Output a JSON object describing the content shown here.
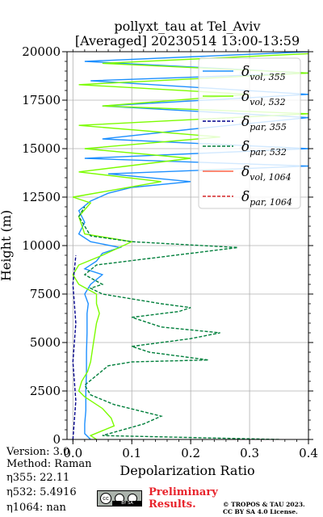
{
  "chart_data": {
    "type": "line",
    "title": "pollyxt_tau at Tel_Aviv",
    "subtitle": "[Averaged] 20230514 13:00-13:59",
    "xlabel": "Depolarization Ratio",
    "ylabel": "Height (m)",
    "xlim": [
      -0.01,
      0.4
    ],
    "ylim": [
      0,
      20000
    ],
    "x_ticks": [
      "0.0",
      "0.1",
      "0.2",
      "0.3",
      "0.4"
    ],
    "y_ticks": [
      "0",
      "2500",
      "5000",
      "7500",
      "10000",
      "12500",
      "15000",
      "17500",
      "20000"
    ],
    "grid": true,
    "legend_position": "upper right",
    "legend_labels": [
      {
        "base": "δ",
        "sub": "vol, 355"
      },
      {
        "base": "δ",
        "sub": "vol, 532"
      },
      {
        "base": "δ",
        "sub": "par, 355"
      },
      {
        "base": "δ",
        "sub": "par, 532"
      },
      {
        "base": "δ",
        "sub": "vol, 1064"
      },
      {
        "base": "δ",
        "sub": "par, 1064"
      }
    ],
    "series": [
      {
        "name": "δvol,355",
        "color": "#1e90ff",
        "style": "solid",
        "points": [
          [
            0.03,
            0
          ],
          [
            0.02,
            300
          ],
          [
            0.02,
            800
          ],
          [
            0.022,
            1500
          ],
          [
            0.022,
            2500
          ],
          [
            0.023,
            3500
          ],
          [
            0.023,
            4500
          ],
          [
            0.024,
            5500
          ],
          [
            0.024,
            6500
          ],
          [
            0.026,
            7000
          ],
          [
            0.02,
            7500
          ],
          [
            0.03,
            8000
          ],
          [
            0.05,
            8500
          ],
          [
            0.02,
            8800
          ],
          [
            0.04,
            9200
          ],
          [
            0.05,
            9600
          ],
          [
            0.08,
            9900
          ],
          [
            0.03,
            10200
          ],
          [
            0.01,
            10600
          ],
          [
            0.02,
            11200
          ],
          [
            0.01,
            11800
          ],
          [
            0.03,
            12300
          ],
          [
            0.06,
            12700
          ],
          [
            0.1,
            13000
          ],
          [
            0.2,
            13300
          ],
          [
            0.06,
            13700
          ],
          [
            0.4,
            14100
          ],
          [
            0.02,
            14500
          ],
          [
            0.4,
            15000
          ],
          [
            0.05,
            15500
          ],
          [
            0.2,
            16000
          ],
          [
            0.4,
            16600
          ],
          [
            0.05,
            17200
          ],
          [
            0.4,
            17800
          ],
          [
            0.03,
            18500
          ],
          [
            0.4,
            18900
          ],
          [
            0.02,
            19500
          ],
          [
            0.4,
            20000
          ]
        ]
      },
      {
        "name": "δvol,532",
        "color": "#7cfc00",
        "style": "solid",
        "points": [
          [
            0.04,
            0
          ],
          [
            0.03,
            200
          ],
          [
            0.07,
            700
          ],
          [
            0.065,
            1100
          ],
          [
            0.05,
            1600
          ],
          [
            0.02,
            2200
          ],
          [
            0.01,
            2500
          ],
          [
            0.015,
            3000
          ],
          [
            0.025,
            3500
          ],
          [
            0.03,
            4000
          ],
          [
            0.035,
            5000
          ],
          [
            0.04,
            6000
          ],
          [
            0.045,
            6500
          ],
          [
            0.04,
            7000
          ],
          [
            0.04,
            7500
          ],
          [
            0.01,
            8000
          ],
          [
            0.0,
            8500
          ],
          [
            0.01,
            9000
          ],
          [
            0.05,
            9500
          ],
          [
            0.1,
            10200
          ],
          [
            0.02,
            10600
          ],
          [
            0.01,
            11500
          ],
          [
            0.03,
            12200
          ],
          [
            0.0,
            12500
          ],
          [
            0.15,
            13300
          ],
          [
            0.01,
            13800
          ],
          [
            0.2,
            14500
          ],
          [
            0.02,
            15000
          ],
          [
            0.25,
            15600
          ],
          [
            0.01,
            16200
          ],
          [
            0.4,
            16800
          ],
          [
            0.05,
            17200
          ],
          [
            0.3,
            17800
          ],
          [
            0.01,
            18300
          ],
          [
            0.4,
            18900
          ],
          [
            0.05,
            19400
          ],
          [
            0.4,
            19900
          ]
        ]
      },
      {
        "name": "δpar,355",
        "color": "#00008b",
        "style": "dashed",
        "points": [
          [
            0.0,
            0
          ],
          [
            0.005,
            2000
          ],
          [
            0.0,
            4000
          ],
          [
            0.005,
            6000
          ],
          [
            0.0,
            8000
          ],
          [
            0.005,
            9500
          ]
        ]
      },
      {
        "name": "δpar,532",
        "color": "#007f3b",
        "style": "dashed",
        "points": [
          [
            0.35,
            0
          ],
          [
            0.05,
            200
          ],
          [
            0.12,
            800
          ],
          [
            0.15,
            1200
          ],
          [
            0.07,
            1800
          ],
          [
            0.03,
            2300
          ],
          [
            0.02,
            2800
          ],
          [
            0.04,
            3300
          ],
          [
            0.06,
            3800
          ],
          [
            0.1,
            4000
          ],
          [
            0.23,
            4100
          ],
          [
            0.13,
            4500
          ],
          [
            0.1,
            4800
          ],
          [
            0.2,
            5200
          ],
          [
            0.25,
            5500
          ],
          [
            0.15,
            5800
          ],
          [
            0.1,
            6300
          ],
          [
            0.18,
            6600
          ],
          [
            0.2,
            6800
          ],
          [
            0.15,
            7000
          ],
          [
            0.05,
            7500
          ],
          [
            0.03,
            7800
          ],
          [
            0.05,
            8000
          ],
          [
            0.02,
            8500
          ],
          [
            0.04,
            9000
          ],
          [
            0.28,
            9900
          ],
          [
            0.1,
            10200
          ],
          [
            0.03,
            10500
          ],
          [
            0.02,
            11000
          ],
          [
            0.01,
            11500
          ],
          [
            0.02,
            12000
          ]
        ]
      },
      {
        "name": "δvol,1064",
        "color": "#ff6347",
        "style": "solid",
        "points": []
      },
      {
        "name": "δpar,1064",
        "color": "#d62728",
        "style": "dashed",
        "points": []
      }
    ]
  },
  "info": {
    "version": "Version: 3.0",
    "method": "Method: Raman",
    "eta355": "η355:  22.11",
    "eta532": "η532: 5.4916",
    "eta1064": "η1064:    nan"
  },
  "watermark": {
    "preliminary": "Preliminary Results.",
    "copyright_line1": "© TROPOS & TAU 2023.",
    "copyright_line2": "CC BY SA 4.0 License."
  },
  "license_badge": {
    "cc": "cc",
    "strip": "BY SA"
  }
}
